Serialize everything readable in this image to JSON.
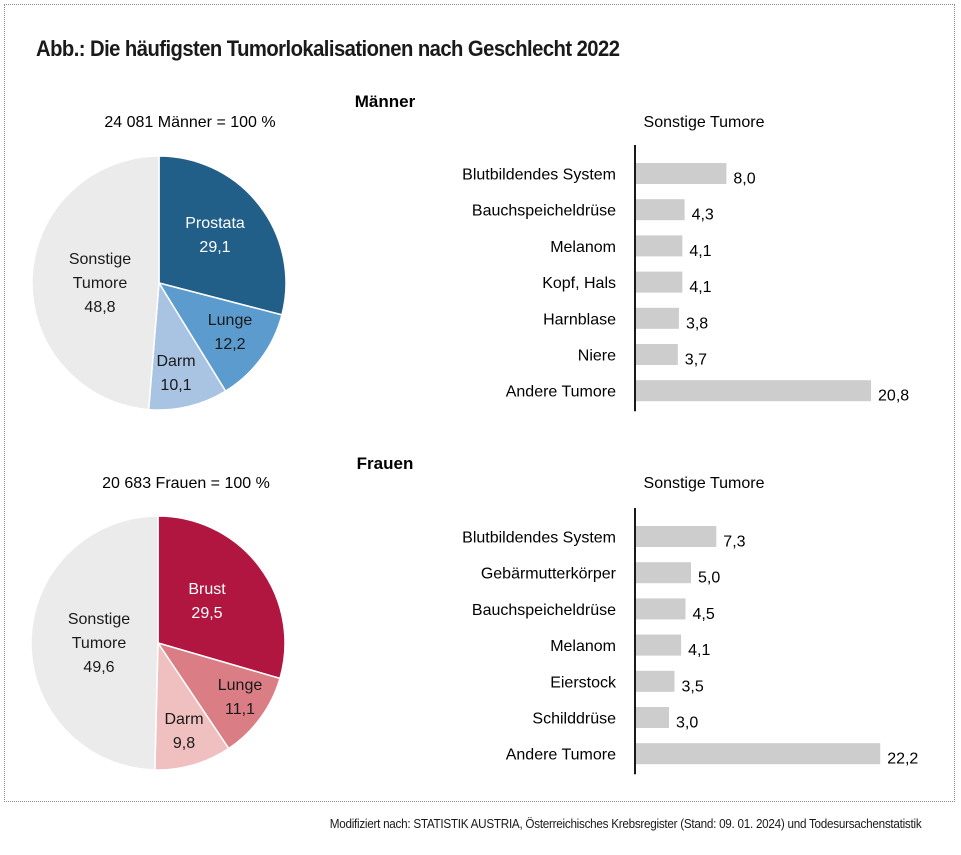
{
  "title": "Abb.: Die häufigsten Tumorlokalisationen nach Geschlecht 2022",
  "source": "Modifiziert nach: STATISTIK AUSTRIA, Österreichisches Krebsregister (Stand: 09. 01. 2024) und Todesursachenstatistik",
  "chart_data": [
    {
      "type": "pie",
      "title": "Männer",
      "subtitle": "24 081 Männer = 100 %",
      "slices": [
        {
          "label": "Prostata",
          "value": 29.1,
          "value_label": "29,1",
          "color": "#215f89",
          "text_color": "#ffffff"
        },
        {
          "label": "Lunge",
          "value": 12.2,
          "value_label": "12,2",
          "color": "#5b9bcd",
          "text_color": "#1a1a1a"
        },
        {
          "label": "Darm",
          "value": 10.1,
          "value_label": "10,1",
          "color": "#a9c3e3",
          "text_color": "#1a1a1a"
        },
        {
          "label": "Sonstige Tumore",
          "value": 48.8,
          "value_label": "48,8",
          "color": "#ebebeb",
          "text_color": "#1a1a1a"
        }
      ]
    },
    {
      "type": "bar",
      "orientation": "horizontal",
      "title": "Sonstige Tumore",
      "categories": [
        "Blutbildendes System",
        "Bauchspeicheldrüse",
        "Melanom",
        "Kopf, Hals",
        "Harnblase",
        "Niere",
        "Andere Tumore"
      ],
      "values": [
        8.0,
        4.3,
        4.1,
        4.1,
        3.8,
        3.7,
        20.8
      ],
      "value_labels": [
        "8,0",
        "4,3",
        "4,1",
        "4,1",
        "3,8",
        "3,7",
        "20,8"
      ],
      "color": "#cdcdcd"
    },
    {
      "type": "pie",
      "title": "Frauen",
      "subtitle": "20 683 Frauen = 100 %",
      "slices": [
        {
          "label": "Brust",
          "value": 29.5,
          "value_label": "29,5",
          "color": "#b0163f",
          "text_color": "#ffffff"
        },
        {
          "label": "Lunge",
          "value": 11.1,
          "value_label": "11,1",
          "color": "#da7d85",
          "text_color": "#1a1a1a"
        },
        {
          "label": "Darm",
          "value": 9.8,
          "value_label": "9,8",
          "color": "#f0c0c0",
          "text_color": "#1a1a1a"
        },
        {
          "label": "Sonstige Tumore",
          "value": 49.6,
          "value_label": "49,6",
          "color": "#ebebeb",
          "text_color": "#1a1a1a"
        }
      ]
    },
    {
      "type": "bar",
      "orientation": "horizontal",
      "title": "Sonstige Tumore",
      "categories": [
        "Blutbildendes System",
        "Gebärmutterkörper",
        "Bauchspeicheldrüse",
        "Melanom",
        "Eierstock",
        "Schilddrüse",
        "Andere Tumore"
      ],
      "values": [
        7.3,
        5.0,
        4.5,
        4.1,
        3.5,
        3.0,
        22.2
      ],
      "value_labels": [
        "7,3",
        "5,0",
        "4,5",
        "4,1",
        "3,5",
        "3,0",
        "22,2"
      ],
      "color": "#cdcdcd"
    }
  ]
}
